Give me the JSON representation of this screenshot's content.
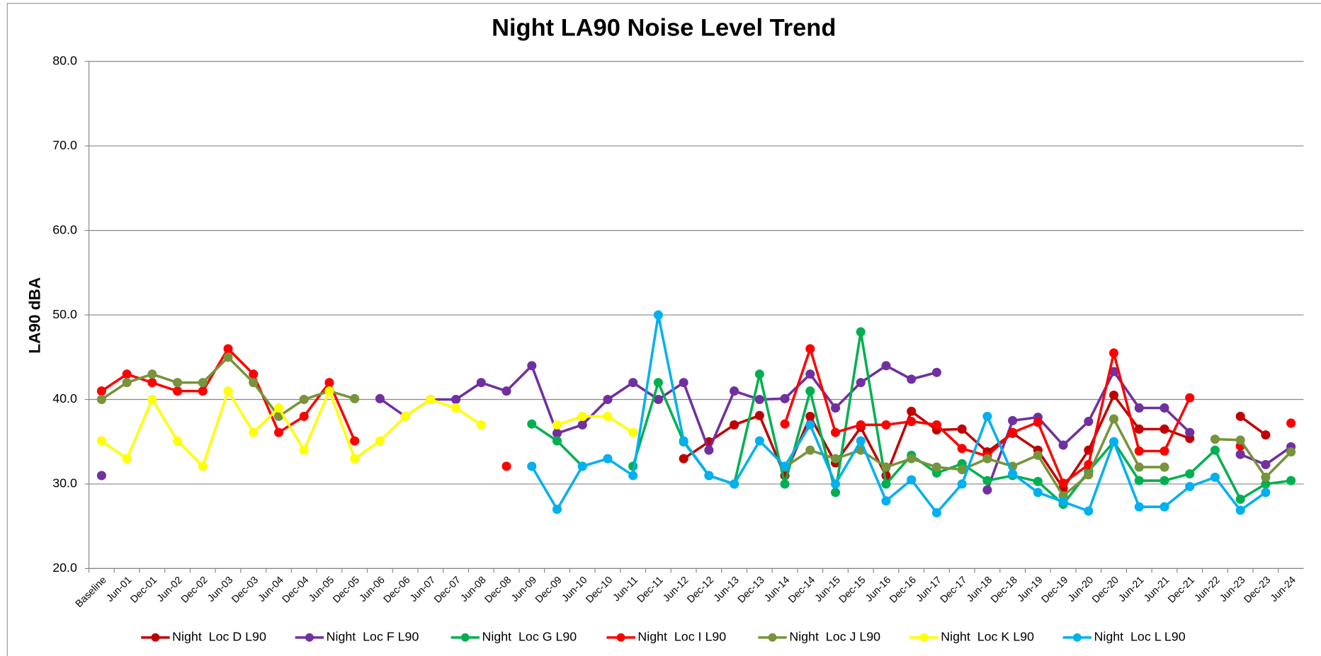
{
  "chart_data": {
    "type": "line",
    "title": "Night LA90 Noise Level Trend",
    "y_label": "LA90 dBA",
    "categories": [
      "Baseline",
      "Jun-01",
      "Dec-01",
      "Jun-02",
      "Dec-02",
      "Jun-03",
      "Dec-03",
      "Jun-04",
      "Dec-04",
      "Jun-05",
      "Dec-05",
      "Jun-06",
      "Dec-06",
      "Jun-07",
      "Dec-07",
      "Jun-08",
      "Dec-08",
      "Jun-09",
      "Dec-09",
      "Jun-10",
      "Dec-10",
      "Jun-11",
      "Dec-11",
      "Jun-12",
      "Dec-12",
      "Jun-13",
      "Dec-13",
      "Jun-14",
      "Dec-14",
      "Jun-15",
      "Dec-15",
      "Jun-16",
      "Dec-16",
      "Jun-17",
      "Dec-17",
      "Jun-18",
      "Dec-18",
      "Jun-19",
      "Dec-19",
      "Jun-20",
      "Dec-20",
      "Jun-21",
      "Jun-21",
      "Dec-21",
      "Jun-22",
      "Jun-23",
      "Dec-23",
      "Jun-24"
    ],
    "series": [
      {
        "name": "Night  Loc D L90",
        "color": "#c00000",
        "values": [
          null,
          null,
          null,
          null,
          null,
          null,
          null,
          null,
          null,
          null,
          null,
          null,
          null,
          null,
          null,
          null,
          null,
          null,
          null,
          null,
          null,
          null,
          null,
          33,
          35,
          37,
          38.1,
          31,
          38,
          32.5,
          36.7,
          31,
          38.6,
          36.4,
          36.5,
          33.8,
          36,
          34,
          29.5,
          34,
          40.5,
          36.5,
          36.5,
          35.4,
          null,
          38,
          35.8,
          null
        ]
      },
      {
        "name": "Night  Loc F L90",
        "color": "#7030a0",
        "values": [
          31,
          null,
          null,
          null,
          null,
          null,
          null,
          null,
          null,
          null,
          null,
          40.1,
          38,
          40,
          40,
          42,
          41,
          44,
          36,
          37,
          40,
          42,
          40,
          42,
          34,
          41,
          40,
          40.1,
          43,
          39,
          42,
          44,
          42.4,
          43.2,
          null,
          29.3,
          37.5,
          37.9,
          34.6,
          37.4,
          43.3,
          39,
          39,
          36.1,
          null,
          33.5,
          32.3,
          34.4
        ]
      },
      {
        "name": "Night  Loc G L90",
        "color": "#00b050",
        "values": [
          null,
          null,
          null,
          null,
          null,
          null,
          null,
          null,
          null,
          null,
          null,
          null,
          null,
          null,
          null,
          null,
          null,
          37.1,
          35.1,
          32.1,
          null,
          32.1,
          42,
          35,
          31,
          30,
          43,
          30,
          41,
          29,
          48,
          30,
          33.4,
          31.3,
          32.4,
          30.4,
          31,
          30.3,
          27.6,
          31.5,
          35,
          30.4,
          30.4,
          31.2,
          34,
          28.2,
          30,
          30.4
        ]
      },
      {
        "name": "Night  Loc I L90",
        "color": "#ff0000",
        "values": [
          41,
          43,
          42,
          41,
          41,
          46,
          43,
          36.1,
          38,
          42,
          35.1,
          null,
          null,
          null,
          null,
          null,
          32.1,
          null,
          null,
          null,
          null,
          null,
          null,
          null,
          null,
          null,
          null,
          37.1,
          46,
          36.1,
          37,
          37,
          37.4,
          37,
          34.2,
          33.3,
          36.1,
          37.3,
          30.1,
          32.3,
          45.5,
          33.9,
          33.9,
          40.2,
          null,
          34.5,
          null,
          37.2
        ]
      },
      {
        "name": "Night  Loc J L90",
        "color": "#77933c",
        "values": [
          40,
          42,
          43,
          42,
          42,
          45,
          42,
          38,
          40,
          41,
          40.1,
          null,
          null,
          null,
          null,
          null,
          null,
          null,
          null,
          null,
          null,
          null,
          null,
          null,
          null,
          null,
          null,
          32,
          34,
          33,
          34,
          32,
          33,
          32,
          31.7,
          33,
          32.1,
          33.4,
          28.6,
          31.1,
          37.7,
          32,
          32,
          null,
          35.3,
          35.2,
          30.8,
          33.8
        ]
      },
      {
        "name": "Night  Loc K L90",
        "color": "#ffff00",
        "values": [
          35.1,
          33,
          40,
          35.1,
          32.1,
          41,
          36.1,
          39,
          34,
          41,
          33,
          35.1,
          38,
          40,
          39,
          37,
          null,
          null,
          37,
          38,
          38,
          36.1,
          null,
          null,
          null,
          null,
          null,
          null,
          null,
          null,
          null,
          null,
          null,
          null,
          null,
          null,
          null,
          null,
          null,
          null,
          null,
          null,
          null,
          null,
          null,
          null,
          null,
          null
        ]
      },
      {
        "name": "Night  Loc L L90",
        "color": "#00b0f0",
        "values": [
          null,
          null,
          null,
          null,
          null,
          null,
          null,
          null,
          null,
          null,
          null,
          null,
          null,
          null,
          null,
          null,
          null,
          32.1,
          27,
          32.1,
          33,
          31,
          50,
          35.1,
          31,
          30,
          35.1,
          32.1,
          37,
          30,
          35.1,
          28,
          30.5,
          26.6,
          30,
          38,
          31.2,
          29,
          27.9,
          26.8,
          35,
          27.3,
          27.3,
          29.7,
          30.8,
          26.9,
          29,
          null
        ]
      }
    ],
    "ylim": [
      20,
      80
    ],
    "yticks": [
      {
        "value": 20,
        "label": "20.0"
      },
      {
        "value": 30,
        "label": "30.0"
      },
      {
        "value": 40,
        "label": "40.0"
      },
      {
        "value": 50,
        "label": "50.0"
      },
      {
        "value": 60,
        "label": "60.0"
      },
      {
        "value": 70,
        "label": "70.0"
      },
      {
        "value": 80,
        "label": "80.0"
      }
    ],
    "grid": true,
    "legend": "bottom"
  }
}
